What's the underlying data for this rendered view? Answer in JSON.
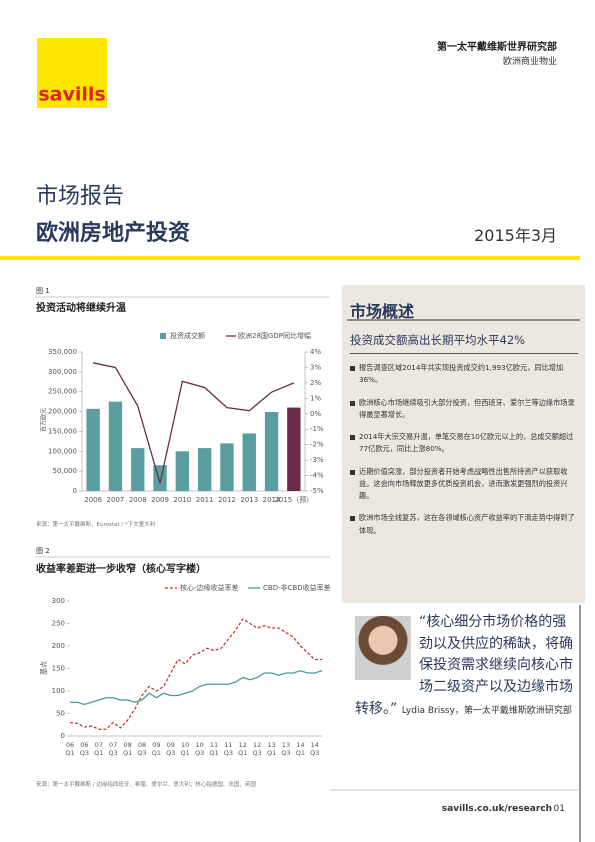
{
  "header": {
    "logo": "savills",
    "department": "第一太平戴维斯世界研究部",
    "sector": "欧洲商业物业",
    "report_type": "市场报告",
    "title": "欧洲房地产投资",
    "date": "2015年3月"
  },
  "chart_data": [
    {
      "type": "bar_line",
      "figure_label": "图 1",
      "title": "投资活动将继续升温",
      "y_label": "百万欧元",
      "categories": [
        "2006",
        "2007",
        "2008",
        "2009",
        "2010",
        "2011",
        "2012",
        "2013",
        "2014",
        "2015（预）"
      ],
      "series": [
        {
          "name": "投资成交额",
          "type": "bar",
          "color": "#5b9ea0",
          "colors": [
            "#5b9ea0",
            "#5b9ea0",
            "#5b9ea0",
            "#5b9ea0",
            "#5b9ea0",
            "#5b9ea0",
            "#5b9ea0",
            "#5b9ea0",
            "#5b9ea0",
            "#6b2d4f"
          ],
          "values": [
            207000,
            225000,
            108000,
            65000,
            100000,
            108000,
            120000,
            145000,
            199000,
            210000
          ]
        },
        {
          "name": "欧洲28国GDP同比增幅",
          "type": "line",
          "color": "#6b2d4f",
          "axis": "y2",
          "values": [
            3.3,
            3.0,
            0.5,
            -4.5,
            2.1,
            1.7,
            0.4,
            0.2,
            1.4,
            2.0
          ]
        }
      ],
      "ylim": [
        0,
        350000
      ],
      "yticks": [
        0,
        {
          "value": 50000,
          "label": "50,000"
        },
        {
          "value": 100000,
          "label": "100,000"
        },
        {
          "value": 150000,
          "label": "150,000"
        },
        {
          "value": 200000,
          "label": "200,000"
        },
        {
          "value": 250000,
          "label": "250,000"
        },
        {
          "value": 300000,
          "label": "300,000"
        },
        {
          "value": 350000,
          "label": "350,000"
        }
      ],
      "y2lim": [
        -5,
        4
      ],
      "y2ticks": [
        {
          "value": -5,
          "label": "-5%"
        },
        {
          "value": -4,
          "label": "-4%"
        },
        {
          "value": -3,
          "label": "-3%"
        },
        {
          "value": -2,
          "label": "-2%"
        },
        {
          "value": -1,
          "label": "-1%"
        },
        {
          "value": 0,
          "label": "0%"
        },
        {
          "value": 1,
          "label": "1%"
        },
        {
          "value": 2,
          "label": "2%"
        },
        {
          "value": 3,
          "label": "3%"
        },
        {
          "value": 4,
          "label": "4%"
        }
      ],
      "source": "来源：第一太平戴维斯，Eurostat / *下文童大利"
    },
    {
      "type": "line",
      "figure_label": "图 2",
      "title": "收益率差距进一步收窄（核心写字楼）",
      "y_label": "基点",
      "categories": [
        "06 Q1",
        null,
        "06 Q3",
        null,
        "07 Q1",
        null,
        "07 Q3",
        null,
        "08 Q1",
        null,
        "08 Q3",
        null,
        "09 Q1",
        null,
        "09 Q3",
        null,
        "10 Q1",
        null,
        "10 Q3",
        null,
        "11 Q1",
        null,
        "11 Q3",
        null,
        "12 Q1",
        null,
        "12 Q3",
        null,
        "13 Q1",
        null,
        "13 Q3",
        null,
        "14 Q1",
        null,
        "14 Q3",
        null
      ],
      "series": [
        {
          "name": "核心-边缘收益率差",
          "color": "#c0392b",
          "style": "dashed",
          "values": [
            30,
            28,
            20,
            22,
            15,
            15,
            30,
            18,
            35,
            60,
            90,
            110,
            100,
            110,
            140,
            170,
            160,
            180,
            185,
            195,
            190,
            195,
            215,
            235,
            260,
            250,
            240,
            245,
            240,
            240,
            230,
            220,
            200,
            185,
            170,
            170
          ]
        },
        {
          "name": "CBD-非CBD收益率差",
          "color": "#4a9a9c",
          "style": "solid",
          "values": [
            75,
            75,
            70,
            75,
            80,
            85,
            85,
            80,
            80,
            75,
            80,
            95,
            85,
            95,
            90,
            90,
            95,
            100,
            110,
            115,
            115,
            115,
            115,
            120,
            130,
            125,
            130,
            140,
            140,
            135,
            140,
            140,
            145,
            140,
            140,
            145
          ]
        }
      ],
      "ylim": [
        0,
        300
      ],
      "yticks": [
        0,
        50,
        100,
        150,
        200,
        250,
        300
      ],
      "source": "来源：第一太平戴维斯 / 边缘指西班牙、希腊、爱尔兰、意大利；核心指德国、法国、英国"
    }
  ],
  "overview": {
    "title": "市场概述",
    "subtitle": "投资成交额高出长期平均水平42%",
    "bullets": [
      "报告调查区域2014年共实现投资成交约1,993亿欧元，同比增加36%。",
      "欧洲核心市场继续吸引大部分投资，但西班牙、爱尔兰等边缘市场录得最显著增长。",
      "2014年大宗交易升温，单笔交易在10亿欧元以上的，总成交额超过77亿欧元，同比上涨80%。",
      "近期价值突涨，部分投资者开始考虑战略性出售所持资产以获取收益。这会向市场释放更多优质投资机会，进而激发更强烈的投资兴趣。",
      "欧洲市场全线复苏，这在各领域核心资产收益率的下滑走势中得到了体现。"
    ]
  },
  "quote": {
    "text": "“核心细分市场价格的强劲以及供应的稀缺，将确保投资需求继续向核心市场二级资产以及边缘市场转移。”",
    "attribution": "Lydia Brissy，第一太平戴维斯欧洲研究部"
  },
  "footer": {
    "url": "savills.co.uk/research",
    "page": "01"
  }
}
